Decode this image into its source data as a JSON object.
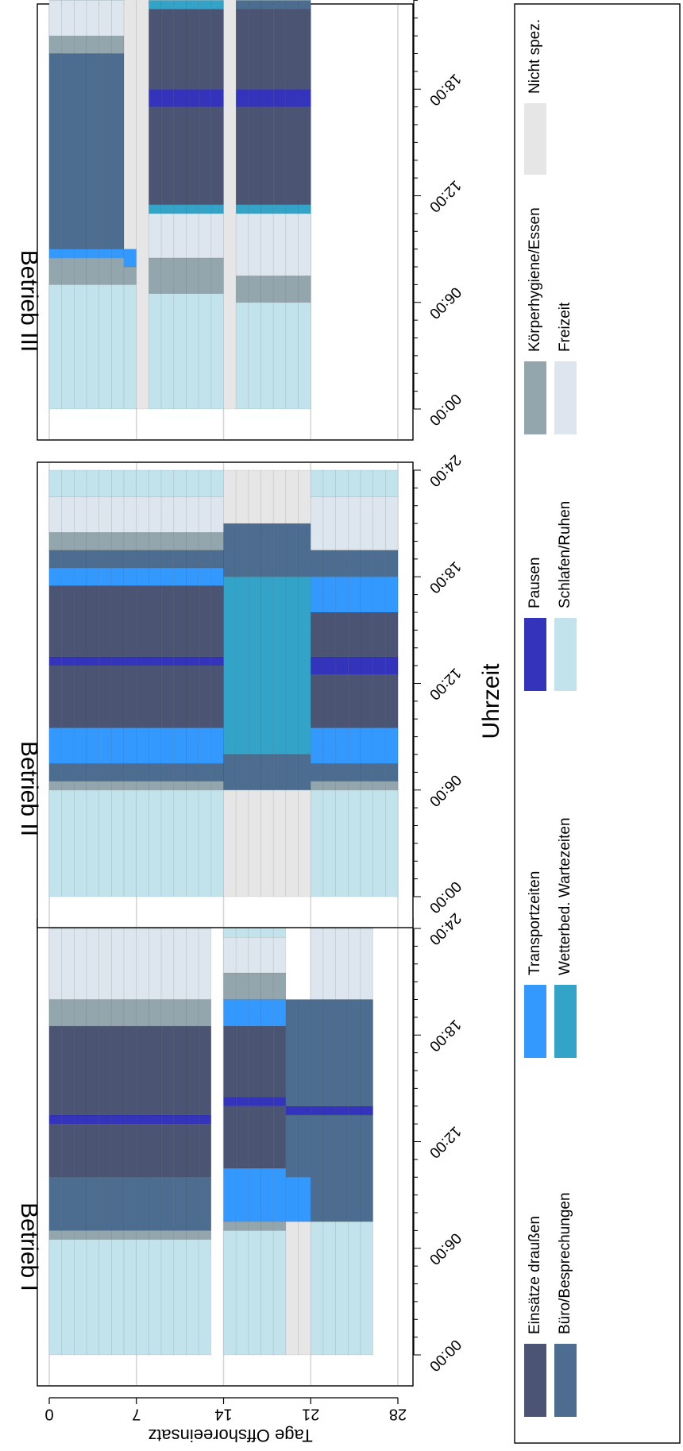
{
  "chart_data": {
    "type": "heatmap",
    "panels": [
      "Betrieb I",
      "Betrieb II",
      "Betrieb III"
    ],
    "xlabel": "Uhrzeit",
    "ylabel": "Tage Offshoreeinsatz",
    "x_ticks": [
      "00:00",
      "06:00",
      "12:00",
      "18:00",
      "24:00"
    ],
    "x_range_hours": [
      0,
      24
    ],
    "y_ticks": [
      "0",
      "7",
      "14",
      "21",
      "28"
    ],
    "y_range_days": [
      0,
      28
    ],
    "grid": true,
    "legend_position": "bottom",
    "categories": [
      {
        "key": "E",
        "label": "Einsätze draußen",
        "color": "#4b5573"
      },
      {
        "key": "B",
        "label": "Büro/Besprechungen",
        "color": "#4c6d8f"
      },
      {
        "key": "T",
        "label": "Transportzeiten",
        "color": "#3399ff"
      },
      {
        "key": "W",
        "label": "Wetterbed. Wartezeiten",
        "color": "#33a3c8"
      },
      {
        "key": "P",
        "label": "Pausen",
        "color": "#3333bb"
      },
      {
        "key": "S",
        "label": "Schlafen/Ruhen",
        "color": "#c3e3ec"
      },
      {
        "key": "K",
        "label": "Körperhygiene/Essen",
        "color": "#93a6ad"
      },
      {
        "key": "F",
        "label": "Freizeit",
        "color": "#dde6ee"
      },
      {
        "key": "N",
        "label": "Nicht spez.",
        "color": "#e6e6e6"
      }
    ],
    "schedules": [
      {
        "panel": "Betrieb I",
        "groups": [
          {
            "days": [
              1,
              13
            ],
            "segments": [
              [
                "S",
                0,
                6.5
              ],
              [
                "K",
                6.5,
                7
              ],
              [
                "B",
                7,
                10
              ],
              [
                "E",
                10,
                13
              ],
              [
                "P",
                13,
                13.5
              ],
              [
                "E",
                13.5,
                18.5
              ],
              [
                "K",
                18.5,
                20
              ],
              [
                "F",
                20,
                24
              ],
              [
                "S",
                24,
                26
              ]
            ]
          },
          {
            "days": [
              15,
              19
            ],
            "segments": [
              [
                "S",
                0,
                7
              ],
              [
                "K",
                7,
                7.5
              ],
              [
                "T",
                7.5,
                10.5
              ],
              [
                "E",
                10.5,
                14
              ],
              [
                "P",
                14,
                14.5
              ],
              [
                "E",
                14.5,
                18.5
              ],
              [
                "T",
                18.5,
                20
              ],
              [
                "K",
                20,
                21.5
              ],
              [
                "F",
                21.5,
                23.5
              ],
              [
                "S",
                23.5,
                26
              ]
            ]
          },
          {
            "days": [
              20,
              21
            ],
            "segments": [
              [
                "N",
                0,
                7.5
              ],
              [
                "T",
                7.5,
                10
              ],
              [
                "B",
                10,
                13.5
              ],
              [
                "P",
                13.5,
                14
              ],
              [
                "B",
                14,
                20
              ]
            ]
          },
          {
            "days": [
              22,
              26
            ],
            "segments": [
              [
                "S",
                0,
                7.5
              ],
              [
                "B",
                7.5,
                13.5
              ],
              [
                "P",
                13.5,
                14
              ],
              [
                "B",
                14,
                20
              ],
              [
                "F",
                20,
                24
              ],
              [
                "S",
                24,
                26
              ]
            ]
          }
        ]
      },
      {
        "panel": "Betrieb II",
        "groups": [
          {
            "days": [
              1,
              14
            ],
            "segments": [
              [
                "S",
                0,
                6
              ],
              [
                "K",
                6,
                6.5
              ],
              [
                "B",
                6.5,
                7.5
              ],
              [
                "T",
                7.5,
                9.5
              ],
              [
                "E",
                9.5,
                13
              ],
              [
                "P",
                13,
                13.5
              ],
              [
                "E",
                13.5,
                17.5
              ],
              [
                "T",
                17.5,
                18.5
              ],
              [
                "B",
                18.5,
                19.5
              ],
              [
                "K",
                19.5,
                20.5
              ],
              [
                "F",
                20.5,
                22.5
              ],
              [
                "S",
                22.5,
                24
              ]
            ]
          },
          {
            "days": [
              15,
              21
            ],
            "segments": [
              [
                "N",
                0,
                6
              ],
              [
                "B",
                6,
                8
              ],
              [
                "W",
                8,
                18
              ],
              [
                "B",
                18,
                21
              ],
              [
                "N",
                21,
                24
              ]
            ]
          },
          {
            "days": [
              22,
              28
            ],
            "segments": [
              [
                "S",
                0,
                6
              ],
              [
                "K",
                6,
                6.5
              ],
              [
                "B",
                6.5,
                7.5
              ],
              [
                "T",
                7.5,
                9.5
              ],
              [
                "E",
                9.5,
                12.5
              ],
              [
                "P",
                12.5,
                13.5
              ],
              [
                "E",
                13.5,
                16
              ],
              [
                "T",
                16,
                18
              ],
              [
                "B",
                18,
                19.5
              ],
              [
                "F",
                19.5,
                22.5
              ],
              [
                "S",
                22.5,
                24
              ]
            ]
          }
        ]
      },
      {
        "panel": "Betrieb III",
        "groups": [
          {
            "days": [
              1,
              6
            ],
            "segments": [
              [
                "S",
                0,
                7
              ],
              [
                "K",
                7,
                8.5
              ],
              [
                "T",
                8.5,
                9
              ],
              [
                "B",
                9,
                20
              ],
              [
                "K",
                20,
                21
              ],
              [
                "F",
                21,
                23
              ],
              [
                "S",
                23,
                24
              ]
            ]
          },
          {
            "days": [
              7,
              7
            ],
            "segments": [
              [
                "S",
                0,
                7
              ],
              [
                "K",
                7,
                8
              ],
              [
                "T",
                8,
                9
              ],
              [
                "N",
                9,
                24
              ]
            ]
          },
          {
            "days": [
              8,
              8
            ],
            "segments": [
              [
                "N",
                0,
                24
              ]
            ]
          },
          {
            "days": [
              9,
              14
            ],
            "segments": [
              [
                "S",
                0,
                6.5
              ],
              [
                "K",
                6.5,
                8.5
              ],
              [
                "F",
                8.5,
                11
              ],
              [
                "W",
                11,
                11.5
              ],
              [
                "E",
                11.5,
                17
              ],
              [
                "P",
                17,
                18
              ],
              [
                "E",
                18,
                22.5
              ],
              [
                "W",
                22.5,
                23
              ],
              [
                "S",
                23,
                24
              ]
            ]
          },
          {
            "days": [
              15,
              15
            ],
            "segments": [
              [
                "N",
                0,
                24
              ]
            ]
          },
          {
            "days": [
              16,
              21
            ],
            "segments": [
              [
                "S",
                0,
                6
              ],
              [
                "K",
                6,
                7.5
              ],
              [
                "F",
                7.5,
                11
              ],
              [
                "W",
                11,
                11.5
              ],
              [
                "E",
                11.5,
                17
              ],
              [
                "P",
                17,
                18
              ],
              [
                "E",
                18,
                22.5
              ],
              [
                "B",
                22.5,
                23
              ],
              [
                "S",
                23,
                24
              ]
            ]
          }
        ]
      }
    ]
  }
}
